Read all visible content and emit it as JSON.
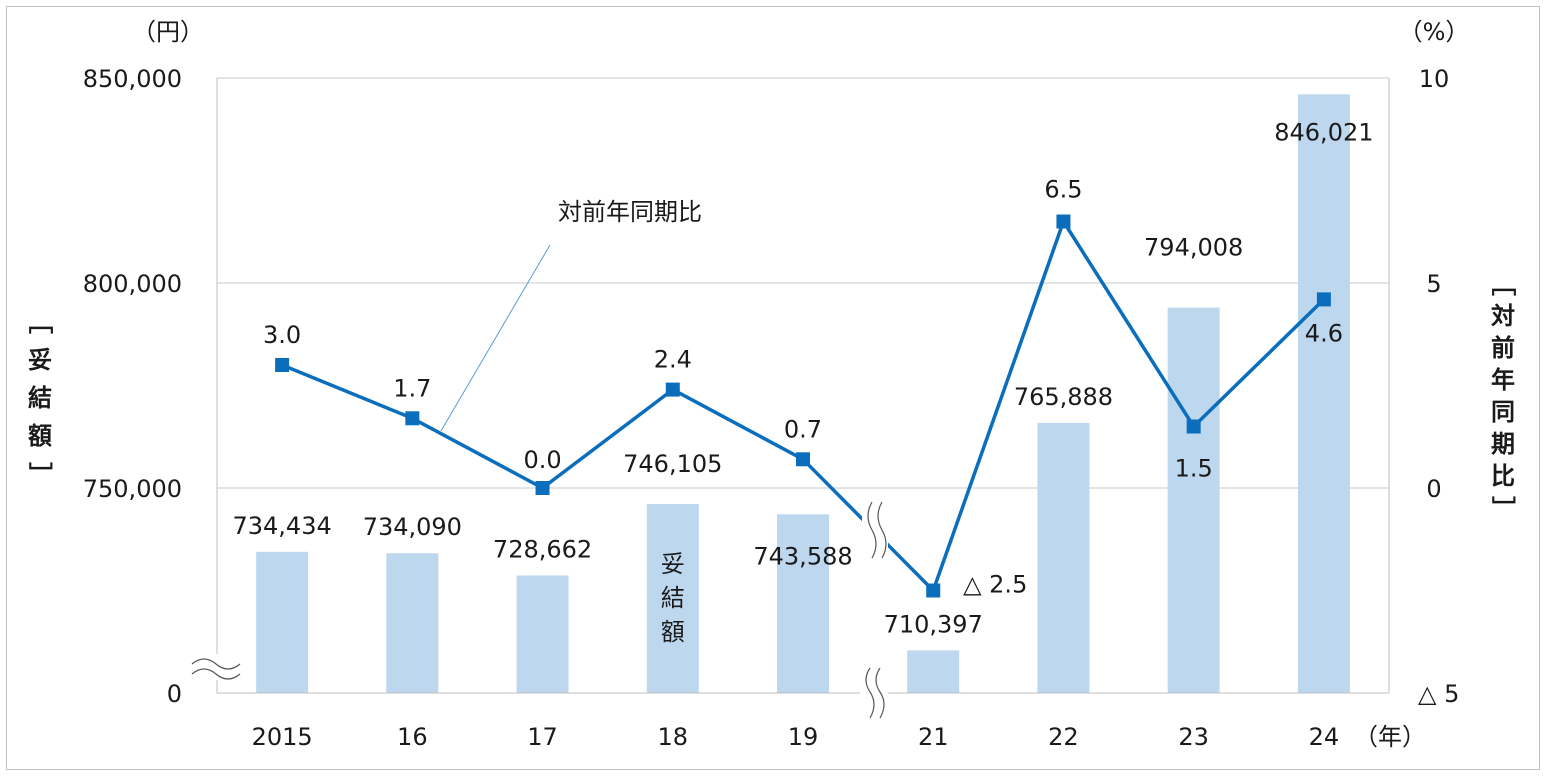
{
  "chart_data": {
    "type": "bar",
    "categories": [
      "2015",
      "16",
      "17",
      "18",
      "19",
      "21",
      "22",
      "23",
      "24"
    ],
    "x_unit": "（年）",
    "left_axis": {
      "unit": "（円）",
      "label": "［妥結額］",
      "ticks": [
        "0",
        "750,000",
        "800,000",
        "850,000"
      ],
      "tick_values": [
        0,
        750000,
        800000,
        850000
      ],
      "broken": true,
      "break_range": [
        0,
        700000
      ]
    },
    "right_axis": {
      "unit": "（%）",
      "label": "［対前年同期比］",
      "ticks": [
        "△ 5",
        "0",
        "5",
        "10"
      ],
      "tick_values": [
        -5,
        0,
        5,
        10
      ]
    },
    "series": [
      {
        "name": "妥結額",
        "kind": "bar",
        "axis": "left",
        "values": [
          734434,
          734090,
          728662,
          746105,
          743588,
          710397,
          765888,
          794008,
          846021
        ],
        "labels": [
          "734,434",
          "734,090",
          "728,662",
          "746,105",
          "743,588",
          "710,397",
          "765,888",
          "794,008",
          "846,021"
        ],
        "color": "#bdd7ee"
      },
      {
        "name": "対前年同期比",
        "kind": "line",
        "axis": "right",
        "values": [
          3.0,
          1.7,
          0.0,
          2.4,
          0.7,
          -2.5,
          6.5,
          1.5,
          4.6
        ],
        "labels": [
          "3.0",
          "1.7",
          "0.0",
          "2.4",
          "0.7",
          "△ 2.5",
          "6.5",
          "1.5",
          "4.6"
        ],
        "color": "#0a6ebd"
      }
    ],
    "x_axis_break_between": [
      "19",
      "21"
    ],
    "grid": true,
    "legend": "none (in-plot annotations)"
  }
}
